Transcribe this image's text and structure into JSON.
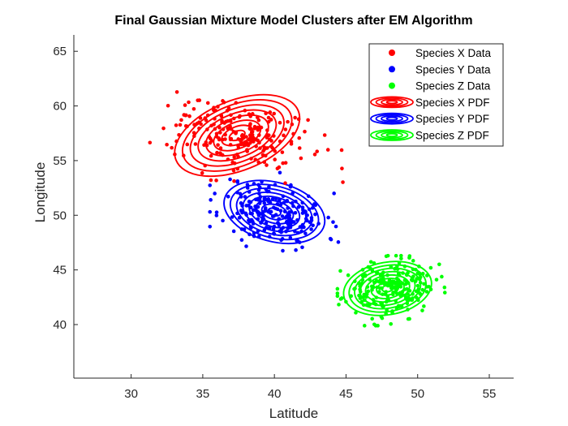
{
  "chart_data": {
    "type": "scatter",
    "title": "Final Gaussian Mixture Model Clusters after EM Algorithm",
    "xlabel": "Latitude",
    "ylabel": "Longitude",
    "xlim": [
      26,
      56.7
    ],
    "ylim": [
      35.1,
      66.5
    ],
    "xticks": [
      30,
      35,
      40,
      45,
      50,
      55
    ],
    "yticks": [
      40,
      45,
      50,
      55,
      60,
      65
    ],
    "grid": false,
    "legend_position": "top-right",
    "legend": [
      {
        "label": "Species X Data",
        "kind": "points",
        "color": "#ff0000"
      },
      {
        "label": "Species Y Data",
        "kind": "points",
        "color": "#0000ff"
      },
      {
        "label": "Species Z Data",
        "kind": "points",
        "color": "#00ff00"
      },
      {
        "label": "Species X PDF",
        "kind": "contour",
        "color": "#ff0000"
      },
      {
        "label": "Species Y PDF",
        "kind": "contour",
        "color": "#0000ff"
      },
      {
        "label": "Species Z PDF",
        "kind": "contour",
        "color": "#00ff00"
      }
    ],
    "series": [
      {
        "name": "Species X Data",
        "color": "#ff0000",
        "approx_points": 220,
        "center": [
          37.3,
          57.3
        ],
        "sd": [
          2.4,
          1.7
        ],
        "corr": -0.35,
        "x_range": [
          30.9,
          46.5
        ],
        "y_range": [
          52.5,
          61.5
        ],
        "seed": 7
      },
      {
        "name": "Species Y Data",
        "color": "#0000ff",
        "approx_points": 220,
        "center": [
          40.0,
          50.2
        ],
        "sd": [
          1.8,
          1.5
        ],
        "corr": -0.3,
        "x_range": [
          35.5,
          46.8
        ],
        "y_range": [
          46.4,
          53.9
        ],
        "seed": 11
      },
      {
        "name": "Species Z Data",
        "color": "#00ff00",
        "approx_points": 220,
        "center": [
          48.0,
          43.3
        ],
        "sd": [
          1.6,
          1.3
        ],
        "corr": 0.1,
        "x_range": [
          44.4,
          51.9
        ],
        "y_range": [
          39.9,
          46.3
        ],
        "seed": 23
      }
    ],
    "pdf_contours": [
      {
        "name": "Species X PDF",
        "color": "#ff0000",
        "center": [
          37.4,
          57.3
        ],
        "semi_axes": [
          4.6,
          3.2
        ],
        "angle_deg": 22,
        "levels": 8
      },
      {
        "name": "Species Y PDF",
        "color": "#0000ff",
        "center": [
          40.0,
          50.3
        ],
        "semi_axes": [
          3.6,
          2.7
        ],
        "angle_deg": -15,
        "levels": 8
      },
      {
        "name": "Species Z PDF",
        "color": "#00ff00",
        "center": [
          47.9,
          43.3
        ],
        "semi_axes": [
          3.1,
          2.4
        ],
        "angle_deg": 10,
        "levels": 8
      }
    ]
  }
}
